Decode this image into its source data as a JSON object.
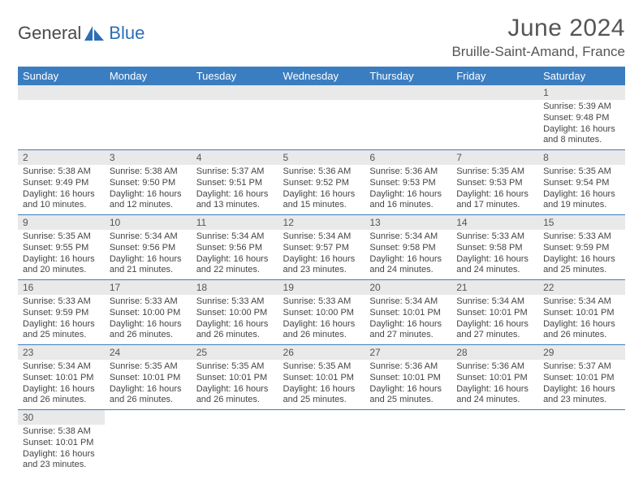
{
  "brand": {
    "part1": "General",
    "part2": "Blue"
  },
  "title": "June 2024",
  "location": "Bruille-Saint-Amand, France",
  "colors": {
    "header_bg": "#3a7ec1",
    "header_text": "#ffffff",
    "row_border": "#3a7ec1",
    "daynum_bg": "#e9e9e9",
    "brand_blue": "#2d6eb5",
    "brand_gray": "#4a4a4a",
    "body_text": "#444444"
  },
  "fonts": {
    "title_size": 30,
    "location_size": 17,
    "dayhead_size": 13,
    "body_size": 11
  },
  "day_headers": [
    "Sunday",
    "Monday",
    "Tuesday",
    "Wednesday",
    "Thursday",
    "Friday",
    "Saturday"
  ],
  "weeks": [
    [
      null,
      null,
      null,
      null,
      null,
      null,
      {
        "n": "1",
        "sr": "Sunrise: 5:39 AM",
        "ss": "Sunset: 9:48 PM",
        "dl1": "Daylight: 16 hours",
        "dl2": "and 8 minutes."
      }
    ],
    [
      {
        "n": "2",
        "sr": "Sunrise: 5:38 AM",
        "ss": "Sunset: 9:49 PM",
        "dl1": "Daylight: 16 hours",
        "dl2": "and 10 minutes."
      },
      {
        "n": "3",
        "sr": "Sunrise: 5:38 AM",
        "ss": "Sunset: 9:50 PM",
        "dl1": "Daylight: 16 hours",
        "dl2": "and 12 minutes."
      },
      {
        "n": "4",
        "sr": "Sunrise: 5:37 AM",
        "ss": "Sunset: 9:51 PM",
        "dl1": "Daylight: 16 hours",
        "dl2": "and 13 minutes."
      },
      {
        "n": "5",
        "sr": "Sunrise: 5:36 AM",
        "ss": "Sunset: 9:52 PM",
        "dl1": "Daylight: 16 hours",
        "dl2": "and 15 minutes."
      },
      {
        "n": "6",
        "sr": "Sunrise: 5:36 AM",
        "ss": "Sunset: 9:53 PM",
        "dl1": "Daylight: 16 hours",
        "dl2": "and 16 minutes."
      },
      {
        "n": "7",
        "sr": "Sunrise: 5:35 AM",
        "ss": "Sunset: 9:53 PM",
        "dl1": "Daylight: 16 hours",
        "dl2": "and 17 minutes."
      },
      {
        "n": "8",
        "sr": "Sunrise: 5:35 AM",
        "ss": "Sunset: 9:54 PM",
        "dl1": "Daylight: 16 hours",
        "dl2": "and 19 minutes."
      }
    ],
    [
      {
        "n": "9",
        "sr": "Sunrise: 5:35 AM",
        "ss": "Sunset: 9:55 PM",
        "dl1": "Daylight: 16 hours",
        "dl2": "and 20 minutes."
      },
      {
        "n": "10",
        "sr": "Sunrise: 5:34 AM",
        "ss": "Sunset: 9:56 PM",
        "dl1": "Daylight: 16 hours",
        "dl2": "and 21 minutes."
      },
      {
        "n": "11",
        "sr": "Sunrise: 5:34 AM",
        "ss": "Sunset: 9:56 PM",
        "dl1": "Daylight: 16 hours",
        "dl2": "and 22 minutes."
      },
      {
        "n": "12",
        "sr": "Sunrise: 5:34 AM",
        "ss": "Sunset: 9:57 PM",
        "dl1": "Daylight: 16 hours",
        "dl2": "and 23 minutes."
      },
      {
        "n": "13",
        "sr": "Sunrise: 5:34 AM",
        "ss": "Sunset: 9:58 PM",
        "dl1": "Daylight: 16 hours",
        "dl2": "and 24 minutes."
      },
      {
        "n": "14",
        "sr": "Sunrise: 5:33 AM",
        "ss": "Sunset: 9:58 PM",
        "dl1": "Daylight: 16 hours",
        "dl2": "and 24 minutes."
      },
      {
        "n": "15",
        "sr": "Sunrise: 5:33 AM",
        "ss": "Sunset: 9:59 PM",
        "dl1": "Daylight: 16 hours",
        "dl2": "and 25 minutes."
      }
    ],
    [
      {
        "n": "16",
        "sr": "Sunrise: 5:33 AM",
        "ss": "Sunset: 9:59 PM",
        "dl1": "Daylight: 16 hours",
        "dl2": "and 25 minutes."
      },
      {
        "n": "17",
        "sr": "Sunrise: 5:33 AM",
        "ss": "Sunset: 10:00 PM",
        "dl1": "Daylight: 16 hours",
        "dl2": "and 26 minutes."
      },
      {
        "n": "18",
        "sr": "Sunrise: 5:33 AM",
        "ss": "Sunset: 10:00 PM",
        "dl1": "Daylight: 16 hours",
        "dl2": "and 26 minutes."
      },
      {
        "n": "19",
        "sr": "Sunrise: 5:33 AM",
        "ss": "Sunset: 10:00 PM",
        "dl1": "Daylight: 16 hours",
        "dl2": "and 26 minutes."
      },
      {
        "n": "20",
        "sr": "Sunrise: 5:34 AM",
        "ss": "Sunset: 10:01 PM",
        "dl1": "Daylight: 16 hours",
        "dl2": "and 27 minutes."
      },
      {
        "n": "21",
        "sr": "Sunrise: 5:34 AM",
        "ss": "Sunset: 10:01 PM",
        "dl1": "Daylight: 16 hours",
        "dl2": "and 27 minutes."
      },
      {
        "n": "22",
        "sr": "Sunrise: 5:34 AM",
        "ss": "Sunset: 10:01 PM",
        "dl1": "Daylight: 16 hours",
        "dl2": "and 26 minutes."
      }
    ],
    [
      {
        "n": "23",
        "sr": "Sunrise: 5:34 AM",
        "ss": "Sunset: 10:01 PM",
        "dl1": "Daylight: 16 hours",
        "dl2": "and 26 minutes."
      },
      {
        "n": "24",
        "sr": "Sunrise: 5:35 AM",
        "ss": "Sunset: 10:01 PM",
        "dl1": "Daylight: 16 hours",
        "dl2": "and 26 minutes."
      },
      {
        "n": "25",
        "sr": "Sunrise: 5:35 AM",
        "ss": "Sunset: 10:01 PM",
        "dl1": "Daylight: 16 hours",
        "dl2": "and 26 minutes."
      },
      {
        "n": "26",
        "sr": "Sunrise: 5:35 AM",
        "ss": "Sunset: 10:01 PM",
        "dl1": "Daylight: 16 hours",
        "dl2": "and 25 minutes."
      },
      {
        "n": "27",
        "sr": "Sunrise: 5:36 AM",
        "ss": "Sunset: 10:01 PM",
        "dl1": "Daylight: 16 hours",
        "dl2": "and 25 minutes."
      },
      {
        "n": "28",
        "sr": "Sunrise: 5:36 AM",
        "ss": "Sunset: 10:01 PM",
        "dl1": "Daylight: 16 hours",
        "dl2": "and 24 minutes."
      },
      {
        "n": "29",
        "sr": "Sunrise: 5:37 AM",
        "ss": "Sunset: 10:01 PM",
        "dl1": "Daylight: 16 hours",
        "dl2": "and 23 minutes."
      }
    ],
    [
      {
        "n": "30",
        "sr": "Sunrise: 5:38 AM",
        "ss": "Sunset: 10:01 PM",
        "dl1": "Daylight: 16 hours",
        "dl2": "and 23 minutes."
      },
      null,
      null,
      null,
      null,
      null,
      null
    ]
  ]
}
